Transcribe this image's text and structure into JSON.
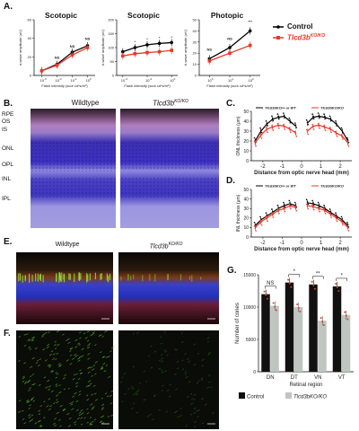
{
  "panels": {
    "A": "A.",
    "B": "B.",
    "C": "C.",
    "D": "D.",
    "E": "E.",
    "F": "F.",
    "G": "G."
  },
  "panelA": {
    "titles": [
      "Scotopic",
      "Scotopic",
      "Photopic"
    ],
    "ylabels": [
      "a-wave amplitude (uV)",
      "b-wave amplitude (uV)",
      "b-wave amplitude (uV)"
    ],
    "xlabel": "Flash intensity (scot cd*s/m²)",
    "legend": [
      {
        "name": "Control",
        "color": "#000000"
      },
      {
        "name": "Tlcd3bKO/KO",
        "color": "#e8392c"
      }
    ],
    "annotations": [
      "NS",
      "NS",
      "NS",
      "NS",
      "NS",
      "***"
    ]
  },
  "panelB": {
    "left_title": "Wildtype",
    "right_title": "Tlcd3bKO/KO",
    "layers": [
      "RPE",
      "OS",
      "IS",
      "ONL",
      "OPL",
      "INL",
      "IPL"
    ]
  },
  "panelC": {
    "ylabel": "ONL thickness (μm)",
    "xlabel": "Distance from optic nerve head (mm)",
    "legend": [
      "Tlcd3bKO/+ or WT",
      "Tlcd3bKO/KO"
    ],
    "yticks": [
      "0",
      "10",
      "20",
      "30",
      "40",
      "50"
    ],
    "xticks": [
      "-2",
      "-1",
      "0",
      "1",
      "2"
    ]
  },
  "panelD": {
    "ylabel": "INL thickness (μm)",
    "xlabel": "Distance from optic nerve head (mm)",
    "legend": [
      "Tlcd3bKO/+ or WT",
      "Tlcd3bKO/KO"
    ],
    "yticks": [
      "0",
      "10",
      "20",
      "30",
      "40",
      "50"
    ],
    "xticks": [
      "-2",
      "-1",
      "0",
      "1",
      "2"
    ]
  },
  "panelE": {
    "left_title": "Wildtype",
    "right_title": "Tlcd3bKO/KO"
  },
  "panelG": {
    "ylabel": "Number of cones",
    "xlabel": "Retinal region",
    "yticks": [
      "0",
      "5000",
      "10000",
      "15000"
    ],
    "sig": [
      "NS",
      "*",
      "**",
      "*"
    ],
    "legend": [
      "Control",
      "Tlcd3bKO/KO"
    ]
  },
  "chart_data": [
    {
      "type": "line",
      "title": "Scotopic",
      "xlabel": "Flash intensity (scot cd*s/m²)",
      "ylabel": "a-wave amplitude (uV)",
      "x": [
        0.001,
        0.01,
        0.1,
        1
      ],
      "series": [
        {
          "name": "Control",
          "values": [
            5,
            12,
            25,
            32
          ]
        },
        {
          "name": "Tlcd3bKO/KO",
          "values": [
            5,
            11,
            22,
            30
          ]
        }
      ]
    },
    {
      "type": "line",
      "title": "Scotopic",
      "xlabel": "Flash intensity (scot cd*s/m²)",
      "ylabel": "b-wave amplitude (uV)",
      "x": [
        0.0001,
        0.001,
        0.01,
        0.1,
        1
      ],
      "series": [
        {
          "name": "Control",
          "values": [
            85,
            100,
            110,
            115,
            118
          ]
        },
        {
          "name": "Tlcd3bKO/KO",
          "values": [
            70,
            78,
            82,
            85,
            90
          ]
        }
      ]
    },
    {
      "type": "line",
      "title": "Photopic",
      "xlabel": "Flash intensity (scot cd*s/m²)",
      "ylabel": "b-wave amplitude (uV)",
      "x": [
        1,
        10,
        100
      ],
      "series": [
        {
          "name": "Control",
          "values": [
            15,
            25,
            40
          ]
        },
        {
          "name": "Tlcd3bKO/KO",
          "values": [
            13,
            20,
            27
          ]
        }
      ]
    },
    {
      "type": "line",
      "xlabel": "Distance from optic nerve head (mm)",
      "ylabel": "ONL thickness (μm)",
      "x": [
        -2.4,
        -2.1,
        -1.8,
        -1.5,
        -1.2,
        -0.9,
        -0.6,
        -0.3,
        0.3,
        0.6,
        0.9,
        1.2,
        1.5,
        1.8,
        2.1,
        2.4
      ],
      "series": [
        {
          "name": "Tlcd3bKO/+ or WT",
          "values": [
            20,
            30,
            37,
            42,
            44,
            45,
            40,
            35,
            38,
            44,
            45,
            44,
            42,
            37,
            30,
            20
          ]
        },
        {
          "name": "Tlcd3bKO/KO",
          "values": [
            18,
            26,
            32,
            34,
            36,
            35,
            32,
            28,
            30,
            35,
            36,
            34,
            32,
            28,
            25,
            18
          ]
        }
      ]
    },
    {
      "type": "line",
      "xlabel": "Distance from optic nerve head (mm)",
      "ylabel": "INL thickness (μm)",
      "x": [
        -2.4,
        -2.1,
        -1.8,
        -1.5,
        -1.2,
        -0.9,
        -0.6,
        -0.3,
        0.3,
        0.6,
        0.9,
        1.2,
        1.5,
        1.8,
        2.1,
        2.4
      ],
      "series": [
        {
          "name": "Tlcd3bKO/+ or WT",
          "values": [
            12,
            18,
            22,
            26,
            30,
            33,
            35,
            33,
            36,
            35,
            33,
            30,
            26,
            22,
            18,
            12
          ]
        },
        {
          "name": "Tlcd3bKO/KO",
          "values": [
            10,
            16,
            20,
            24,
            28,
            30,
            33,
            31,
            33,
            32,
            30,
            28,
            24,
            20,
            16,
            10
          ]
        }
      ]
    },
    {
      "type": "bar",
      "xlabel": "Retinal region",
      "ylabel": "Number of cones",
      "categories": [
        "DN",
        "DT",
        "VN",
        "VT"
      ],
      "ylim": [
        0,
        15000
      ],
      "series": [
        {
          "name": "Control",
          "values": [
            12000,
            13800,
            13500,
            13200
          ]
        },
        {
          "name": "Tlcd3bKO/KO",
          "values": [
            10200,
            10000,
            7900,
            8800
          ]
        }
      ]
    }
  ]
}
